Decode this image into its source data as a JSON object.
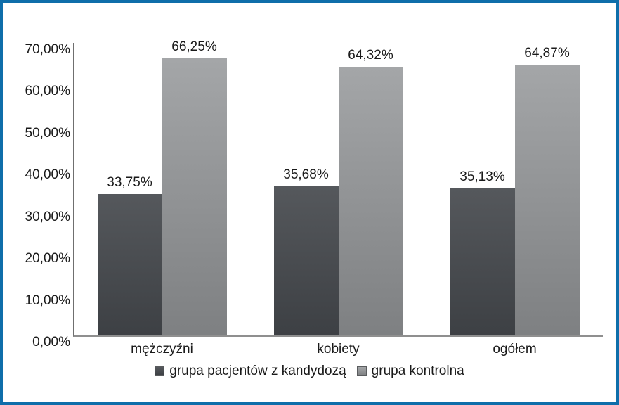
{
  "frame": {
    "border_color": "#0f6eaa",
    "background": "#ffffff"
  },
  "chart_data": {
    "type": "bar",
    "title": "",
    "xlabel": "",
    "ylabel": "",
    "categories": [
      "mężczyźni",
      "kobiety",
      "ogółem"
    ],
    "series": [
      {
        "name": "grupa pacjentów z kandydozą",
        "values": [
          33.75,
          35.68,
          35.13
        ],
        "labels": [
          "33,75%",
          "35,68%",
          "35,13%"
        ],
        "color_top": "#55585c",
        "color_bottom": "#3d4044",
        "legend_color": "#47494d"
      },
      {
        "name": "grupa kontrolna",
        "values": [
          66.25,
          64.32,
          64.87
        ],
        "labels": [
          "66,25%",
          "64,32%",
          "64,87%"
        ],
        "color_top": "#a4a6a8",
        "color_bottom": "#7e8082",
        "legend_color": "#919396"
      }
    ],
    "ylim": [
      0,
      70
    ],
    "y_ticks": [
      "0,00%",
      "10,00%",
      "20,00%",
      "30,00%",
      "40,00%",
      "50,00%",
      "60,00%",
      "70,00%"
    ],
    "grid": false,
    "legend_position": "bottom-center"
  }
}
